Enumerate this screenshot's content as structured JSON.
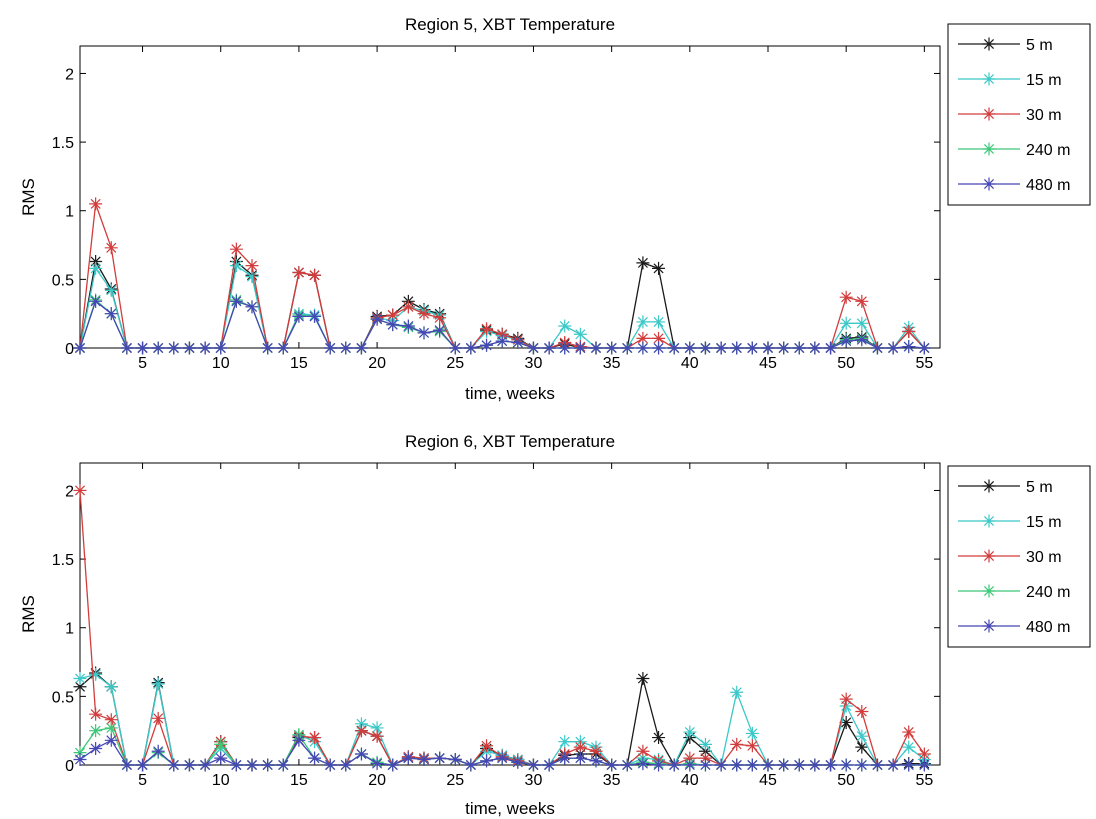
{
  "chart_data": [
    {
      "type": "line",
      "title": "Region 5, XBT Temperature",
      "xlabel": "time, weeks",
      "ylabel": "RMS",
      "xlim": [
        1,
        56
      ],
      "ylim": [
        0,
        2.2
      ],
      "xticks": [
        5,
        10,
        15,
        20,
        25,
        30,
        35,
        40,
        45,
        50,
        55
      ],
      "yticks": [
        0,
        0.5,
        1,
        1.5,
        2
      ],
      "ytick_labels": [
        "0",
        "0.5",
        "1",
        "1.5",
        "2"
      ],
      "grid": false,
      "legend_position": "outside-top-right",
      "x": [
        1,
        2,
        3,
        4,
        5,
        6,
        7,
        8,
        9,
        10,
        11,
        12,
        13,
        14,
        15,
        16,
        17,
        18,
        19,
        20,
        21,
        22,
        23,
        24,
        25,
        26,
        27,
        28,
        29,
        30,
        31,
        32,
        33,
        34,
        35,
        36,
        37,
        38,
        39,
        40,
        41,
        42,
        43,
        44,
        45,
        46,
        47,
        48,
        49,
        50,
        51,
        52,
        53,
        54,
        55
      ],
      "series": [
        {
          "name": "5 m",
          "color": "#1a1a1a",
          "values": [
            0,
            0.63,
            0.43,
            0,
            0,
            0,
            0,
            0,
            0,
            0,
            0.63,
            0.53,
            0,
            0,
            0.55,
            0.53,
            0,
            0,
            0,
            0.23,
            0.24,
            0.34,
            0.28,
            0.25,
            0,
            0,
            0.13,
            0.1,
            0.07,
            0,
            0,
            0.03,
            0,
            0,
            0,
            0,
            0.62,
            0.58,
            0,
            0,
            0,
            0,
            0,
            0,
            0,
            0,
            0,
            0,
            0,
            0.07,
            0.08,
            0,
            0,
            0.12,
            0
          ]
        },
        {
          "name": "15 m",
          "color": "#3cc8c8",
          "values": [
            0,
            0.58,
            0.42,
            0,
            0,
            0,
            0,
            0,
            0,
            0,
            0.6,
            0.52,
            0,
            0,
            0.25,
            0.24,
            0,
            0,
            0,
            0.22,
            0.2,
            0.3,
            0.27,
            0.24,
            0,
            0,
            0.12,
            0.09,
            0.06,
            0,
            0,
            0.16,
            0.1,
            0,
            0,
            0,
            0.19,
            0.19,
            0,
            0,
            0,
            0,
            0,
            0,
            0,
            0,
            0,
            0,
            0,
            0.18,
            0.18,
            0,
            0,
            0.15,
            0
          ]
        },
        {
          "name": "30 m",
          "color": "#d23c3c",
          "values": [
            0,
            1.05,
            0.73,
            0,
            0,
            0,
            0,
            0,
            0,
            0,
            0.72,
            0.6,
            0,
            0,
            0.55,
            0.53,
            0,
            0,
            0,
            0.22,
            0.24,
            0.3,
            0.25,
            0.22,
            0,
            0,
            0.14,
            0.1,
            0.06,
            0,
            0,
            0.04,
            0.01,
            0,
            0,
            0,
            0.07,
            0.07,
            0,
            0,
            0,
            0,
            0,
            0,
            0,
            0,
            0,
            0,
            0,
            0.37,
            0.34,
            0,
            0,
            0.12,
            0
          ]
        },
        {
          "name": "240 m",
          "color": "#3cc878",
          "values": [
            0,
            0.35,
            0.25,
            0,
            0,
            0,
            0,
            0,
            0,
            0,
            0.35,
            0.3,
            0,
            0,
            0.24,
            0.23,
            0,
            0,
            0,
            0.21,
            0.17,
            0.15,
            0.11,
            0.12,
            0,
            0,
            0.02,
            0.05,
            0.04,
            0,
            0,
            0,
            0,
            0,
            0,
            0,
            0,
            0,
            0,
            0,
            0,
            0,
            0,
            0,
            0,
            0,
            0,
            0,
            0,
            0.06,
            0.07,
            0,
            0,
            0.01,
            0
          ]
        },
        {
          "name": "480 m",
          "color": "#4646b4",
          "values": [
            0,
            0.34,
            0.25,
            0,
            0,
            0,
            0,
            0,
            0,
            0,
            0.34,
            0.3,
            0,
            0,
            0.23,
            0.23,
            0,
            0,
            0,
            0.21,
            0.17,
            0.16,
            0.11,
            0.13,
            0,
            0,
            0.02,
            0.05,
            0.04,
            0,
            0,
            0,
            0,
            0,
            0,
            0,
            0,
            0,
            0,
            0,
            0,
            0,
            0,
            0,
            0,
            0,
            0,
            0,
            0,
            0.05,
            0.06,
            0,
            0,
            0.01,
            0
          ]
        }
      ]
    },
    {
      "type": "line",
      "title": "Region 6, XBT Temperature",
      "xlabel": "time, weeks",
      "ylabel": "RMS",
      "xlim": [
        1,
        56
      ],
      "ylim": [
        0,
        2.2
      ],
      "xticks": [
        5,
        10,
        15,
        20,
        25,
        30,
        35,
        40,
        45,
        50,
        55
      ],
      "yticks": [
        0,
        0.5,
        1,
        1.5,
        2
      ],
      "ytick_labels": [
        "0",
        "0.5",
        "1",
        "1.5",
        "2"
      ],
      "grid": false,
      "legend_position": "outside-top-right",
      "x": [
        1,
        2,
        3,
        4,
        5,
        6,
        7,
        8,
        9,
        10,
        11,
        12,
        13,
        14,
        15,
        16,
        17,
        18,
        19,
        20,
        21,
        22,
        23,
        24,
        25,
        26,
        27,
        28,
        29,
        30,
        31,
        32,
        33,
        34,
        35,
        36,
        37,
        38,
        39,
        40,
        41,
        42,
        43,
        44,
        45,
        46,
        47,
        48,
        49,
        50,
        51,
        52,
        53,
        54,
        55
      ],
      "series": [
        {
          "name": "5 m",
          "color": "#1a1a1a",
          "values": [
            0.57,
            0.67,
            0.57,
            0,
            0,
            0.6,
            0,
            0,
            0,
            0.17,
            0,
            0,
            0,
            0,
            0.2,
            0.2,
            0,
            0,
            0.25,
            0.21,
            0,
            0.05,
            0.05,
            0.05,
            0.04,
            0,
            0.12,
            0.07,
            0.04,
            0,
            0,
            0.07,
            0.08,
            0.08,
            0,
            0,
            0.63,
            0.2,
            0,
            0.2,
            0.1,
            0,
            0,
            0,
            0,
            0,
            0,
            0,
            0,
            0.31,
            0.13,
            0,
            0,
            0.01,
            0.01
          ]
        },
        {
          "name": "15 m",
          "color": "#3cc8c8",
          "values": [
            0.63,
            0.66,
            0.57,
            0,
            0,
            0.59,
            0,
            0,
            0,
            0.12,
            0,
            0,
            0,
            0,
            0.22,
            0.17,
            0,
            0,
            0.3,
            0.27,
            0,
            0.06,
            0.05,
            0.05,
            0.04,
            0,
            0.1,
            0.07,
            0.04,
            0,
            0,
            0.17,
            0.17,
            0.13,
            0,
            0,
            0.05,
            0.04,
            0,
            0.24,
            0.15,
            0,
            0.53,
            0.23,
            0,
            0,
            0,
            0,
            0,
            0.43,
            0.21,
            0,
            0,
            0.13,
            0.04
          ]
        },
        {
          "name": "30 m",
          "color": "#d23c3c",
          "values": [
            2.0,
            0.37,
            0.33,
            0,
            0,
            0.34,
            0,
            0,
            0,
            0.17,
            0,
            0,
            0,
            0,
            0.21,
            0.2,
            0,
            0,
            0.25,
            0.21,
            0,
            0.06,
            0.05,
            0.05,
            0.04,
            0,
            0.14,
            0.06,
            0.03,
            0,
            0,
            0.08,
            0.13,
            0.1,
            0,
            0,
            0.1,
            0.03,
            0,
            0.05,
            0.05,
            0,
            0.15,
            0.14,
            0,
            0,
            0,
            0,
            0,
            0.48,
            0.39,
            0,
            0,
            0.24,
            0.08
          ]
        },
        {
          "name": "240 m",
          "color": "#3cc878",
          "values": [
            0.09,
            0.25,
            0.27,
            0,
            0,
            0.09,
            0,
            0,
            0,
            0.15,
            0,
            0,
            0,
            0,
            0.22,
            0.05,
            0,
            0,
            0.08,
            0.02,
            0,
            0.05,
            0.04,
            0.05,
            0.04,
            0,
            0.03,
            0.05,
            0.02,
            0,
            0,
            0.05,
            0.05,
            0.03,
            0,
            0,
            0.02,
            0.01,
            0,
            0.01,
            0,
            0,
            0,
            0,
            0,
            0,
            0,
            0,
            0,
            0,
            0,
            0,
            0,
            0,
            0
          ]
        },
        {
          "name": "480 m",
          "color": "#4646b4",
          "values": [
            0.04,
            0.12,
            0.18,
            0,
            0,
            0.1,
            0,
            0,
            0,
            0.05,
            0,
            0,
            0,
            0,
            0.18,
            0.05,
            0,
            0,
            0.08,
            0.01,
            0,
            0.05,
            0.04,
            0.05,
            0.04,
            0,
            0.03,
            0.05,
            0.02,
            0,
            0,
            0.05,
            0.05,
            0.03,
            0,
            0,
            0.01,
            0,
            0,
            0,
            0,
            0,
            0,
            0,
            0,
            0,
            0,
            0,
            0,
            0,
            0,
            0,
            0,
            0,
            0
          ]
        }
      ]
    }
  ]
}
